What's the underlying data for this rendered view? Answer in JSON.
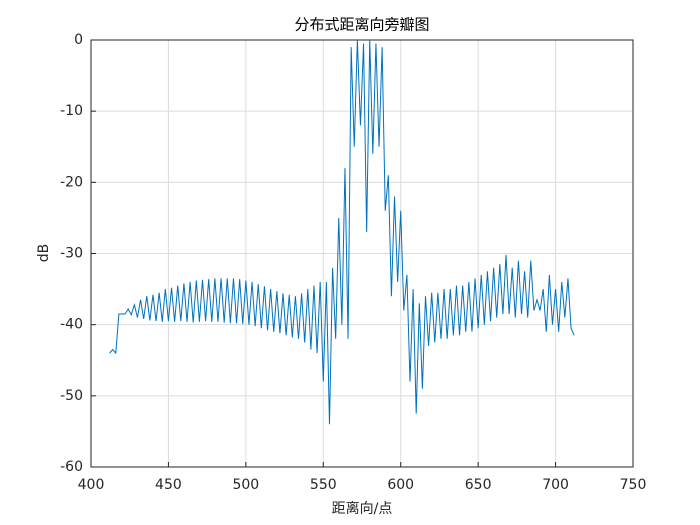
{
  "chart_data": {
    "type": "line",
    "title": "分布式距离向旁瓣图",
    "xlabel": "距离向/点",
    "ylabel": "dB",
    "xlim": [
      400,
      750
    ],
    "xticks": [
      400,
      450,
      500,
      550,
      600,
      650,
      700,
      750
    ],
    "ylim": [
      -60,
      0
    ],
    "yticks": [
      -60,
      -50,
      -40,
      -30,
      -20,
      -10,
      0
    ],
    "grid": true,
    "x": [
      412,
      414,
      416,
      418,
      420,
      422,
      424,
      426,
      428,
      430,
      432,
      434,
      436,
      438,
      440,
      442,
      444,
      446,
      448,
      450,
      452,
      454,
      456,
      458,
      460,
      462,
      464,
      466,
      468,
      470,
      472,
      474,
      476,
      478,
      480,
      482,
      484,
      486,
      488,
      490,
      492,
      494,
      496,
      498,
      500,
      502,
      504,
      506,
      508,
      510,
      512,
      514,
      516,
      518,
      520,
      522,
      524,
      526,
      528,
      530,
      532,
      534,
      536,
      538,
      540,
      542,
      544,
      546,
      548,
      550,
      552,
      554,
      556,
      558,
      560,
      562,
      564,
      566,
      568,
      570,
      572,
      574,
      576,
      578,
      580,
      582,
      584,
      586,
      588,
      590,
      592,
      594,
      596,
      598,
      600,
      602,
      604,
      606,
      608,
      610,
      612,
      614,
      616,
      618,
      620,
      622,
      624,
      626,
      628,
      630,
      632,
      634,
      636,
      638,
      640,
      642,
      644,
      646,
      648,
      650,
      652,
      654,
      656,
      658,
      660,
      662,
      664,
      666,
      668,
      670,
      672,
      674,
      676,
      678,
      680,
      682,
      684,
      686,
      688,
      690,
      692,
      694,
      696,
      698,
      700,
      702,
      704,
      706,
      708,
      710,
      712
    ],
    "series": [
      {
        "color": "#0072bd",
        "values": [
          -44,
          -43.5,
          -44,
          -38.5,
          -38.5,
          -38.5,
          -37.8,
          -38.6,
          -37.2,
          -39,
          -36.5,
          -39.2,
          -36,
          -39.4,
          -35.8,
          -39.5,
          -35.5,
          -39.6,
          -35,
          -39.5,
          -34.8,
          -39.6,
          -34.5,
          -39.5,
          -34.2,
          -39.6,
          -34,
          -39.7,
          -33.8,
          -39.6,
          -33.7,
          -39.5,
          -33.6,
          -39.6,
          -33.5,
          -39.6,
          -33.5,
          -39.7,
          -33.5,
          -39.8,
          -33.5,
          -39.8,
          -33.6,
          -39.9,
          -33.8,
          -40,
          -34,
          -40.2,
          -34.3,
          -40.5,
          -34.6,
          -40.8,
          -35,
          -41,
          -35.3,
          -41.2,
          -35.6,
          -41.5,
          -35.8,
          -41.8,
          -36,
          -42,
          -35.6,
          -42.5,
          -35,
          -43.5,
          -34.5,
          -44,
          -34,
          -48,
          -34,
          -54,
          -32,
          -42,
          -25,
          -40,
          -18,
          -42,
          -1,
          -15,
          0,
          -12,
          -0.5,
          -27,
          0,
          -16,
          -0.5,
          -15,
          -1,
          -24,
          -19,
          -36,
          -22,
          -34,
          -24,
          -38,
          -33,
          -48,
          -35,
          -52.5,
          -37,
          -49,
          -36,
          -43,
          -35.5,
          -42.5,
          -35.5,
          -42,
          -35,
          -42,
          -35,
          -41.5,
          -34.5,
          -41.5,
          -34.5,
          -41,
          -34,
          -41,
          -33.5,
          -40.5,
          -33,
          -40,
          -32.5,
          -39.5,
          -32,
          -39,
          -31.5,
          -38.5,
          -30.2,
          -38.5,
          -32,
          -39,
          -31,
          -38.5,
          -32.5,
          -39,
          -31,
          -38,
          -36.5,
          -38,
          -35,
          -41,
          -33,
          -40,
          -35,
          -41,
          -34,
          -39,
          -33.5,
          -40.5,
          -41.5
        ]
      }
    ]
  }
}
